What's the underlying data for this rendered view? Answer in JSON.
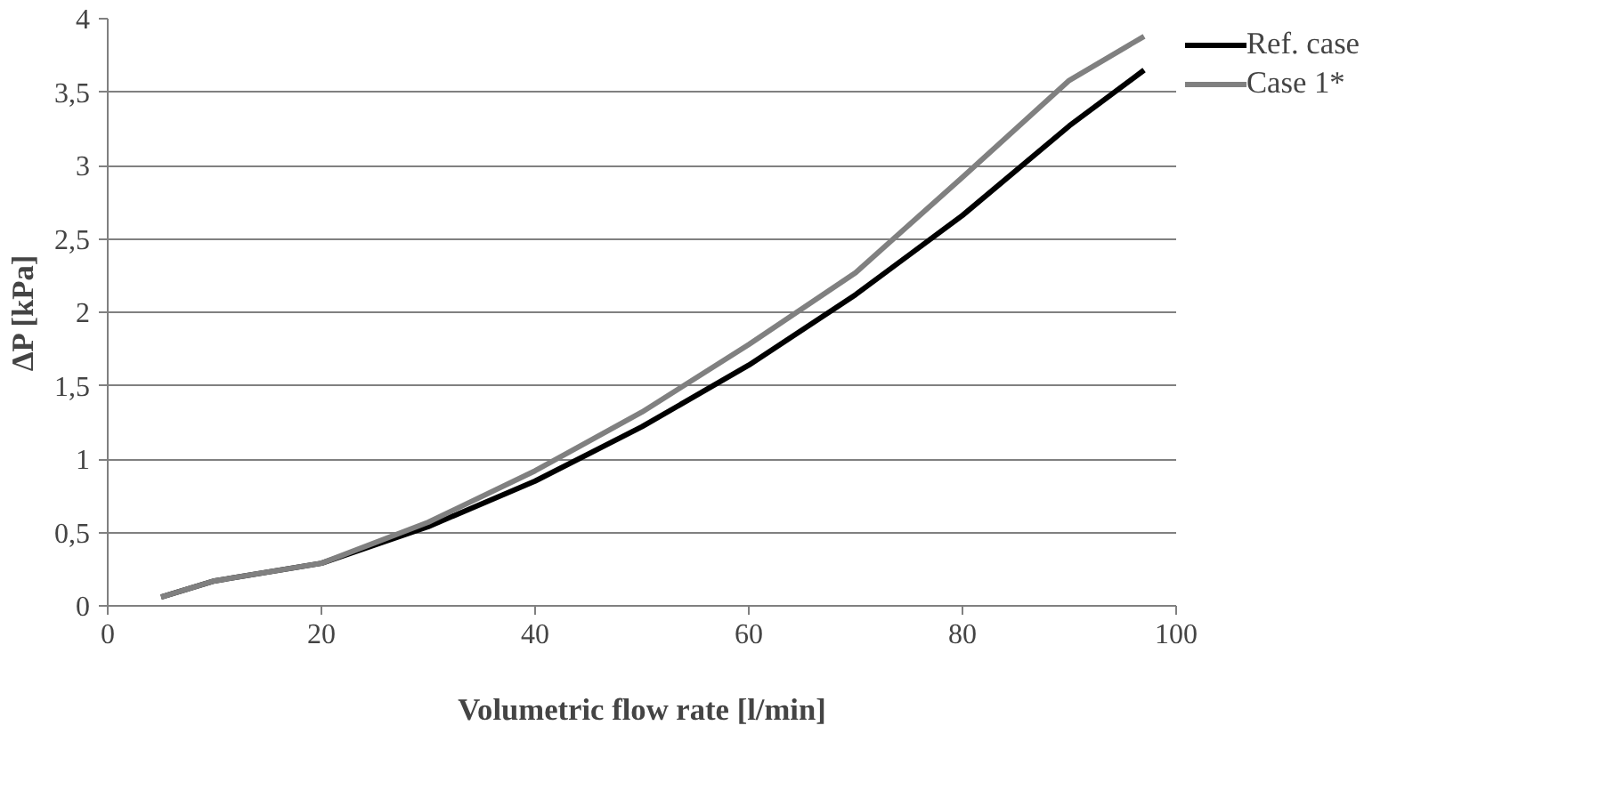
{
  "chart_data": {
    "type": "line",
    "xlabel": "Volumetric flow rate [l/min]",
    "ylabel": "ΔP [kPa]",
    "x": [
      5,
      10,
      20,
      30,
      40,
      50,
      60,
      70,
      80,
      90,
      97
    ],
    "series": [
      {
        "name": "Ref. case",
        "color": "#000000",
        "values": [
          0.06,
          0.17,
          0.29,
          0.54,
          0.85,
          1.22,
          1.64,
          2.12,
          2.66,
          3.27,
          3.65
        ]
      },
      {
        "name": "Case 1*",
        "color": "#808080",
        "values": [
          0.06,
          0.17,
          0.29,
          0.57,
          0.92,
          1.32,
          1.78,
          2.27,
          2.92,
          3.58,
          3.88
        ]
      }
    ],
    "xlim": [
      0,
      100
    ],
    "xticks": [
      0,
      20,
      40,
      60,
      80,
      100
    ],
    "ylim": [
      0,
      4
    ],
    "yticks": [
      0,
      {
        "value": 0.5,
        "label": "0,5"
      },
      1,
      {
        "value": 1.5,
        "label": "1,5"
      },
      2,
      {
        "value": 2.5,
        "label": "2,5"
      },
      3,
      {
        "value": 3.5,
        "label": "3,5"
      },
      4
    ],
    "grid": "y",
    "legend": "right",
    "marker": "none",
    "line_style": "solid"
  }
}
